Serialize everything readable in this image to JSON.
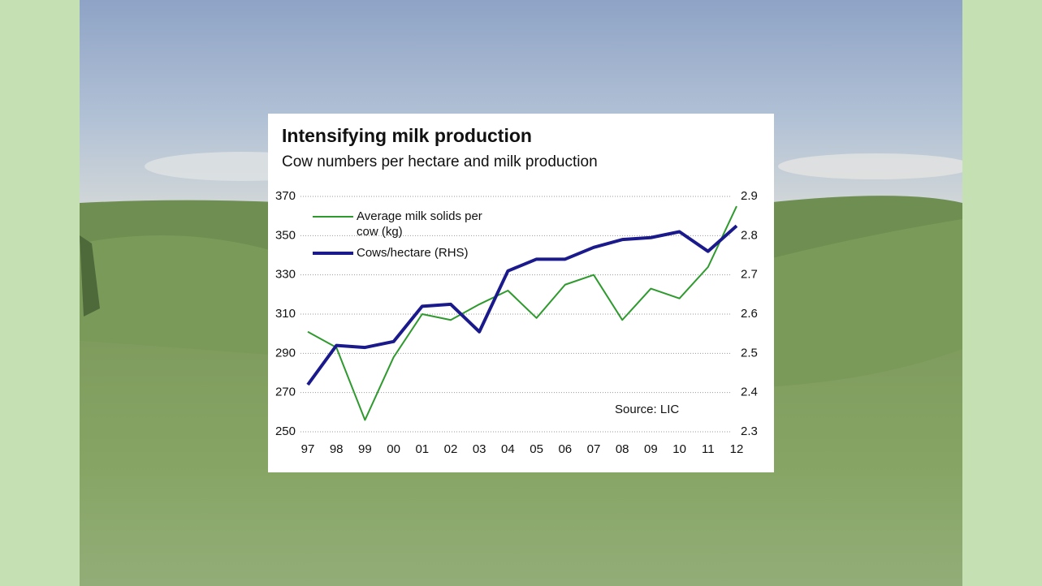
{
  "chart_data": {
    "type": "line",
    "title": "Intensifying milk production",
    "subtitle": "Cow numbers per hectare and milk production",
    "annotation": "Source: LIC",
    "categories": [
      "97",
      "98",
      "99",
      "00",
      "01",
      "02",
      "03",
      "04",
      "05",
      "06",
      "07",
      "08",
      "09",
      "10",
      "11",
      "12"
    ],
    "series": [
      {
        "name": "Average milk solids per cow (kg)",
        "color": "#2e9a2e",
        "axis": "y",
        "values": [
          301,
          293,
          256,
          288,
          310,
          307,
          315,
          322,
          308,
          325,
          330,
          307,
          323,
          318,
          334,
          365
        ]
      },
      {
        "name": "Cows/hectare (RHS)",
        "color": "#1a1a8c",
        "axis": "y2",
        "values": [
          2.42,
          2.52,
          2.515,
          2.53,
          2.62,
          2.625,
          2.555,
          2.71,
          2.74,
          2.74,
          2.77,
          2.79,
          2.795,
          2.81,
          2.76,
          2.825
        ]
      }
    ],
    "ylim": [
      250,
      370
    ],
    "yticks": [
      250,
      270,
      290,
      310,
      330,
      350,
      370
    ],
    "y2lim": [
      2.3,
      2.9
    ],
    "y2ticks": [
      2.3,
      2.4,
      2.5,
      2.6,
      2.7,
      2.8,
      2.9
    ],
    "grid": true
  }
}
